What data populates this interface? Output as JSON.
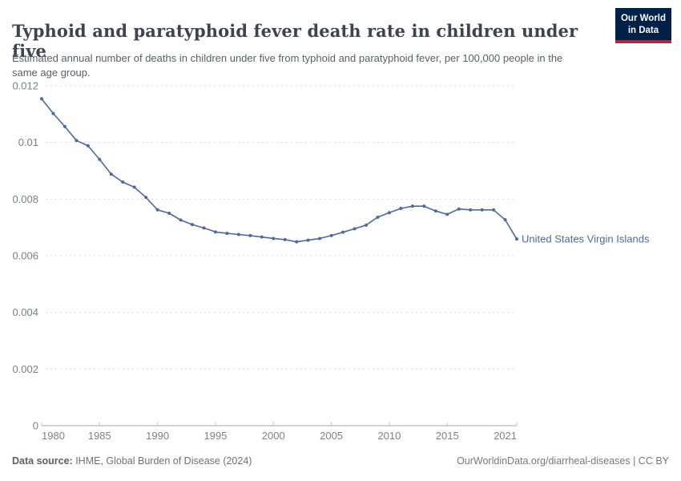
{
  "header": {
    "title": "Typhoid and paratyphoid fever death rate in children under five",
    "subtitle": "Estimated annual number of deaths in children under five from typhoid and paratyphoid fever, per 100,000 people in the same age group."
  },
  "logo": {
    "line1": "Our World",
    "line2": "in Data",
    "background": "#002147",
    "accent": "#a82b3f"
  },
  "chart_data": {
    "type": "line",
    "title": "Typhoid and paratyphoid fever death rate in children under five",
    "x": [
      1980,
      1981,
      1982,
      1983,
      1984,
      1985,
      1986,
      1987,
      1988,
      1989,
      1990,
      1991,
      1992,
      1993,
      1994,
      1995,
      1996,
      1997,
      1998,
      1999,
      2000,
      2001,
      2002,
      2003,
      2004,
      2005,
      2006,
      2007,
      2008,
      2009,
      2010,
      2011,
      2012,
      2013,
      2014,
      2015,
      2016,
      2017,
      2018,
      2019,
      2020,
      2021
    ],
    "series": [
      {
        "name": "United States Virgin Islands",
        "color": "#4C6A9C",
        "values": [
          0.01154,
          0.01102,
          0.01056,
          0.01007,
          0.00988,
          0.0094,
          0.00888,
          0.0086,
          0.00842,
          0.00806,
          0.00762,
          0.0075,
          0.00726,
          0.0071,
          0.00698,
          0.00684,
          0.00679,
          0.00675,
          0.00671,
          0.00666,
          0.00661,
          0.00657,
          0.00649,
          0.00655,
          0.00661,
          0.00671,
          0.00683,
          0.00695,
          0.00708,
          0.00736,
          0.00752,
          0.00767,
          0.00775,
          0.00775,
          0.00758,
          0.00746,
          0.00765,
          0.00762,
          0.00762,
          0.00762,
          0.00727,
          0.00659
        ]
      }
    ],
    "xticks": [
      1980,
      1985,
      1990,
      1995,
      2000,
      2005,
      2010,
      2015,
      2021
    ],
    "yticks": [
      0,
      0.002,
      0.004,
      0.006,
      0.008,
      0.01,
      0.012
    ],
    "ytick_labels": [
      "0",
      "0.002",
      "0.004",
      "0.006",
      "0.008",
      "0.01",
      "0.012"
    ],
    "xlabel": "",
    "ylabel": "",
    "ylim": [
      0,
      0.012
    ],
    "xlim": [
      1980,
      2021
    ],
    "grid": "horizontal-dashed",
    "legend": "end-of-line-label",
    "grid_color": "#dcdcdc",
    "axis_color": "#a8a8a8",
    "tick_text_color": "#7d8187"
  },
  "footer": {
    "datasource_label": "Data source:",
    "datasource_value": " IHME, Global Burden of Disease (2024)",
    "attribution": "OurWorldinData.org/diarrheal-diseases | CC BY"
  }
}
